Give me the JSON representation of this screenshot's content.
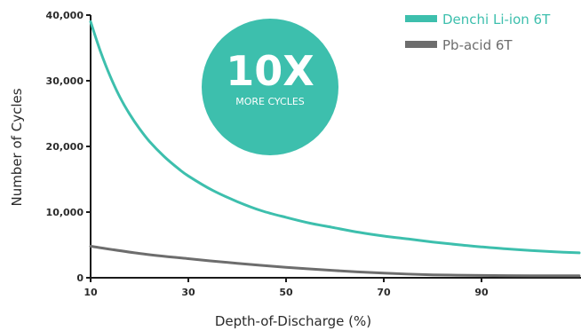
{
  "chart_data": {
    "type": "line",
    "xlabel": "Depth-of-Discharge (%)",
    "ylabel": "Number of Cycles",
    "xlim": [
      10,
      110
    ],
    "ylim": [
      0,
      40000
    ],
    "x_ticks": [
      "10",
      "30",
      "50",
      "70",
      "90"
    ],
    "y_ticks": [
      "0",
      "10,000",
      "20,000",
      "30,000",
      "40,000"
    ],
    "grid": false,
    "legend_position": "top-right",
    "series": [
      {
        "name": "Denchi Li-ion 6T",
        "color": "#3dbfad",
        "x": [
          10,
          12,
          14,
          16,
          18,
          20,
          22,
          25,
          28,
          30,
          35,
          40,
          45,
          50,
          55,
          60,
          65,
          70,
          75,
          80,
          85,
          90,
          95,
          100,
          105,
          110
        ],
        "y": [
          39000,
          34500,
          30700,
          27500,
          24900,
          22700,
          20800,
          18500,
          16600,
          15500,
          13300,
          11600,
          10200,
          9200,
          8300,
          7600,
          6900,
          6350,
          5900,
          5450,
          5050,
          4700,
          4400,
          4150,
          3950,
          3800
        ]
      },
      {
        "name": "Pb-acid 6T",
        "color": "#6d6d6d",
        "x": [
          10,
          20,
          30,
          40,
          50,
          60,
          70,
          80,
          90,
          100,
          110
        ],
        "y": [
          4800,
          3700,
          2900,
          2200,
          1600,
          1100,
          700,
          450,
          350,
          300,
          300
        ]
      }
    ],
    "annotations": [
      {
        "text": "10X",
        "color": "#3dbfad"
      },
      {
        "text": "MORE CYCLES"
      }
    ]
  }
}
